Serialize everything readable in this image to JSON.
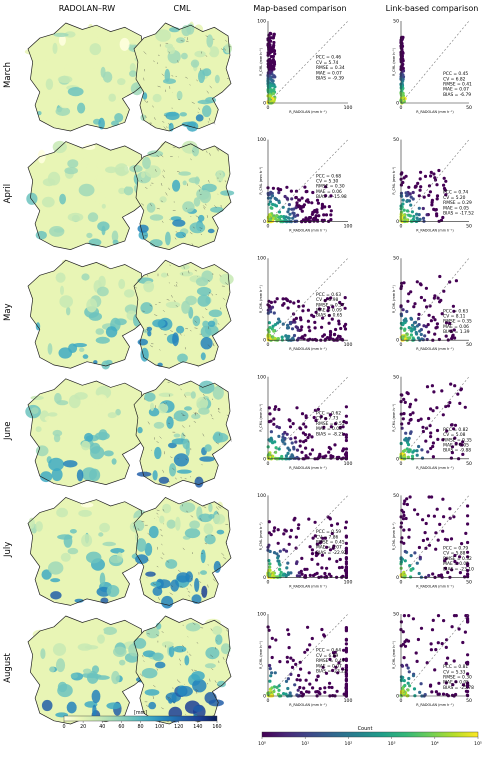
{
  "columns": [
    "RADOLAN–RW",
    "CML",
    "Map-based comparison",
    "Link-based comparison"
  ],
  "chart_data": {
    "type": "scatter",
    "rows": [
      {
        "month": "March",
        "map": {
          "PCC": "0.46",
          "CV": "5.74",
          "RMSE": "0.34",
          "MAE": "0.07",
          "BIAS": "-9.39"
        },
        "link": {
          "PCC": "0.45",
          "CV": "6.82",
          "RMSE": "0.41",
          "MAE": "0.07",
          "BIAS": "-6.79"
        }
      },
      {
        "month": "April",
        "map": {
          "PCC": "0.68",
          "CV": "5.30",
          "RMSE": "0.30",
          "MAE": "0.06",
          "BIAS": "-15.98"
        },
        "link": {
          "PCC": "0.74",
          "CV": "5.20",
          "RMSE": "0.29",
          "MAE": "0.05",
          "BIAS": "-17.52"
        }
      },
      {
        "month": "May",
        "map": {
          "PCC": "0.63",
          "CV": "8.98",
          "RMSE": "0.57",
          "MAE": "0.09",
          "BIAS": "0.65"
        },
        "link": {
          "PCC": "0.63",
          "CV": "8.11",
          "RMSE": "0.35",
          "MAE": "0.06",
          "BIAS": "1.39"
        }
      },
      {
        "month": "June",
        "map": {
          "PCC": "0.62",
          "CV": "7.73",
          "RMSE": "0.55",
          "MAE": "0.08",
          "BIAS": "-8.21"
        },
        "link": {
          "PCC": "0.82",
          "CV": "5.08",
          "RMSE": "0.35",
          "MAE": "0.05",
          "BIAS": "-9.88"
        }
      },
      {
        "month": "July",
        "map": {
          "PCC": "0.59",
          "CV": "7.86",
          "RMSE": "0.45",
          "MAE": "0.07",
          "BIAS": "-22.92"
        },
        "link": {
          "PCC": "0.79",
          "CV": "5.88",
          "RMSE": "0.32",
          "MAE": "0.05",
          "BIAS": "-23.10"
        }
      },
      {
        "month": "August",
        "map": {
          "PCC": "0.64",
          "CV": "6.99",
          "RMSE": "0.44",
          "MAE": "0.07",
          "BIAS": "-23.22"
        },
        "link": {
          "PCC": "0.81",
          "CV": "5.33",
          "RMSE": "0.30",
          "MAE": "0.05",
          "BIAS": "-25.78"
        }
      }
    ],
    "map_axes": {
      "xlim": [
        0,
        100
      ],
      "ylim": [
        0,
        100
      ],
      "xticks": [
        "0",
        "100"
      ],
      "yticks": [
        "0",
        "100"
      ],
      "xlabel": "R_RADOLAN (mm h⁻¹)",
      "ylabel": "R_CML (mm h⁻¹)"
    },
    "link_axes": {
      "xlim": [
        0,
        50
      ],
      "ylim": [
        0,
        50
      ],
      "xticks": [
        "0",
        "50"
      ],
      "yticks": [
        "0",
        "50"
      ],
      "xlabel": "R_RADOLAN (mm h⁻¹)",
      "ylabel": "R_CML (mm h⁻¹)"
    },
    "rain_colorbar": {
      "label": "[mm]",
      "ticks": [
        "0",
        "20",
        "40",
        "60",
        "80",
        "100",
        "120",
        "140",
        "160"
      ],
      "colors": [
        "#ffffe0",
        "#e8f5b5",
        "#c7e9b4",
        "#9fd8b8",
        "#6cc3be",
        "#3faac3",
        "#2383bc",
        "#225ea8",
        "#1c3f96",
        "#081d58"
      ]
    },
    "count_colorbar": {
      "label": "Count",
      "ticks": [
        "10⁰",
        "10¹",
        "10²",
        "10³",
        "10⁴",
        "10⁵"
      ],
      "colors": [
        "#440154",
        "#482878",
        "#3e4989",
        "#31688e",
        "#26828e",
        "#1f9e89",
        "#35b779",
        "#6ece58",
        "#b5de2b",
        "#fde725"
      ]
    }
  }
}
